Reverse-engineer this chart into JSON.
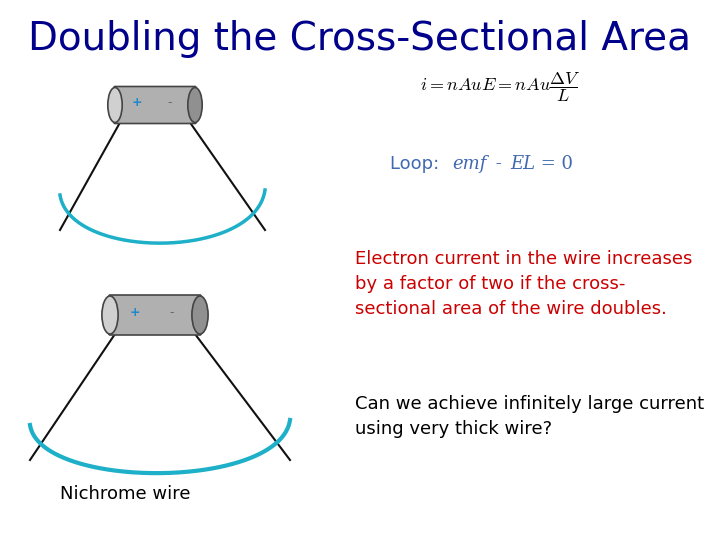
{
  "title": "Doubling the Cross-Sectional Area",
  "title_color": "#00008B",
  "title_fontsize": 28,
  "background_color": "#FFFFFF",
  "loop_text_color": "#4169B0",
  "electron_text": "Electron current in the wire increases\nby a factor of two if the cross-\nsectional area of the wire doubles.",
  "electron_text_color": "#CC0000",
  "can_text": "Can we achieve infinitely large current\nusing very thick wire?",
  "can_text_color": "#000000",
  "nichrome_text": "Nichrome wire",
  "nichrome_text_color": "#000000",
  "teal_color": "#1EB0C8",
  "wire_outline_color": "#111111",
  "battery_body_color": "#B0B0B0",
  "battery_face_color": "#D0D0D0",
  "battery_dark_color": "#909090"
}
